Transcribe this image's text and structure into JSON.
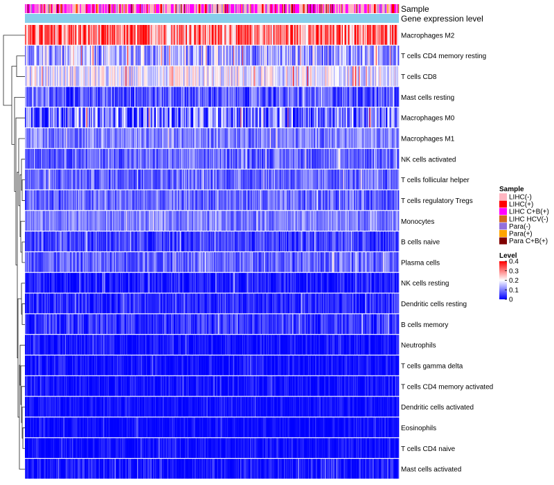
{
  "chart_data": {
    "type": "heatmap",
    "n_columns": 420,
    "annotation_tracks": [
      "Sample",
      "Gene expression level"
    ],
    "rows": [
      {
        "name": "Macrophages M2",
        "mean": 0.3,
        "spread": 0.12
      },
      {
        "name": "T cells CD4 memory resting",
        "mean": 0.13,
        "spread": 0.1
      },
      {
        "name": "T cells CD8",
        "mean": 0.18,
        "spread": 0.08
      },
      {
        "name": "Mast cells resting",
        "mean": 0.07,
        "spread": 0.07
      },
      {
        "name": "Macrophages M0",
        "mean": 0.09,
        "spread": 0.12
      },
      {
        "name": "Macrophages M1",
        "mean": 0.1,
        "spread": 0.06
      },
      {
        "name": "NK cells activated",
        "mean": 0.08,
        "spread": 0.06
      },
      {
        "name": "T cells follicular helper",
        "mean": 0.08,
        "spread": 0.06
      },
      {
        "name": "T cells regulatory  Tregs",
        "mean": 0.08,
        "spread": 0.06
      },
      {
        "name": "Monocytes",
        "mean": 0.1,
        "spread": 0.05
      },
      {
        "name": "B cells naive",
        "mean": 0.05,
        "spread": 0.05
      },
      {
        "name": "Plasma cells",
        "mean": 0.08,
        "spread": 0.06
      },
      {
        "name": "NK cells resting",
        "mean": 0.02,
        "spread": 0.05
      },
      {
        "name": "Dendritic cells resting",
        "mean": 0.03,
        "spread": 0.05
      },
      {
        "name": "B cells memory",
        "mean": 0.04,
        "spread": 0.05
      },
      {
        "name": "Neutrophils",
        "mean": 0.01,
        "spread": 0.04
      },
      {
        "name": "T cells gamma delta",
        "mean": 0.01,
        "spread": 0.04
      },
      {
        "name": "T cells CD4 memory activated",
        "mean": 0.01,
        "spread": 0.04
      },
      {
        "name": "Dendritic cells activated",
        "mean": 0.01,
        "spread": 0.03
      },
      {
        "name": "Eosinophils",
        "mean": 0.005,
        "spread": 0.03
      },
      {
        "name": "T cells CD4 naive",
        "mean": 0.005,
        "spread": 0.04
      },
      {
        "name": "Mast cells activated",
        "mean": 0.01,
        "spread": 0.05
      }
    ],
    "sample_legend": {
      "title": "Sample",
      "entries": [
        {
          "label": "LIHC(-)",
          "color": "#ffb6c1",
          "weight": 0.42
        },
        {
          "label": "LIHC(+)",
          "color": "#ff0000",
          "weight": 0.08
        },
        {
          "label": "LIHC C+B(+)",
          "color": "#ff00ff",
          "weight": 0.35
        },
        {
          "label": "LIHC HCV(-)",
          "color": "#d2691e",
          "weight": 0.03
        },
        {
          "label": "Para(-)",
          "color": "#9370db",
          "weight": 0.06
        },
        {
          "label": "Para(+)",
          "color": "#ffa500",
          "weight": 0.03
        },
        {
          "label": "Para C+B(+)",
          "color": "#800000",
          "weight": 0.03
        }
      ]
    },
    "gene_expression_color": "#87ceeb",
    "level_legend": {
      "title": "Level",
      "ticks": [
        "0.4",
        "0.3",
        "0.2",
        "0.1",
        "0"
      ],
      "range": [
        0,
        0.4
      ],
      "colors": [
        "#0000ff",
        "#ffffff",
        "#ff0000"
      ]
    }
  }
}
